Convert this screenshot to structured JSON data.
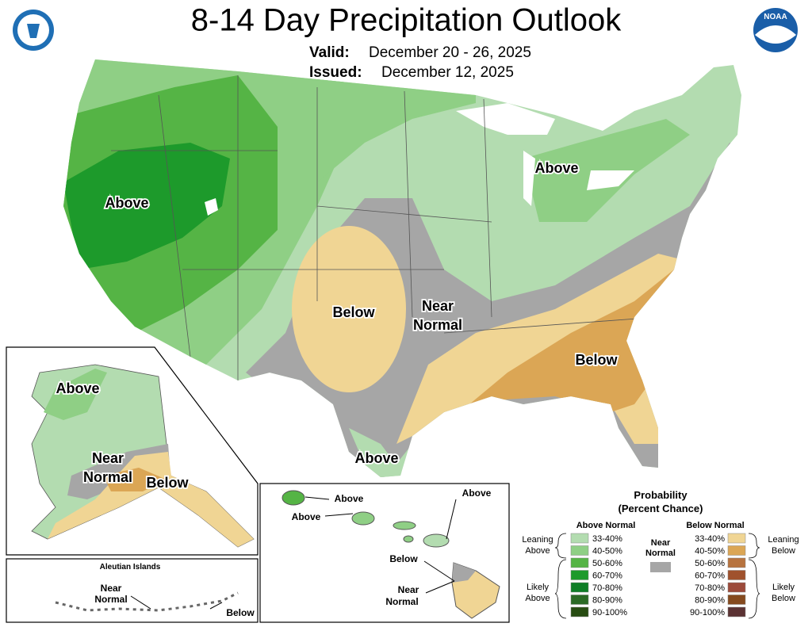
{
  "header": {
    "title": "8-14 Day Precipitation Outlook",
    "valid_label": "Valid:",
    "valid_dates": "December 20 - 26, 2025",
    "issued_label": "Issued:",
    "issued_date": "December 12, 2025",
    "right_logo": "NOAA"
  },
  "conus_labels": [
    "Above",
    "Above",
    "Below",
    "Near",
    "Normal",
    "Below",
    "Above"
  ],
  "alaska_labels": [
    "Above",
    "Near",
    "Normal",
    "Below"
  ],
  "aleutians": {
    "title": "Aleutian Islands",
    "labels": [
      "Near",
      "Normal",
      "Below"
    ]
  },
  "hawaii_labels": [
    "Above",
    "Above",
    "Above",
    "Below",
    "Near",
    "Normal"
  ],
  "legend": {
    "title": [
      "Probability",
      "(Percent Chance)"
    ],
    "above": {
      "header": "Above Normal",
      "bins": [
        "33-40%",
        "40-50%",
        "50-60%",
        "60-70%",
        "70-80%",
        "80-90%",
        "90-100%"
      ],
      "colors": [
        "#b3dcb0",
        "#8fcf85",
        "#55b445",
        "#1d9a2b",
        "#0e7e26",
        "#2b6a25",
        "#274c12"
      ]
    },
    "below": {
      "header": "Below Normal",
      "bins": [
        "33-40%",
        "40-50%",
        "50-60%",
        "60-70%",
        "70-80%",
        "80-90%",
        "90-100%"
      ],
      "colors": [
        "#f0d594",
        "#dba655",
        "#b7733f",
        "#a0522d",
        "#9c4a3a",
        "#854a1e",
        "#5b3233"
      ]
    },
    "near": {
      "label": [
        "Near",
        "Normal"
      ],
      "color": "#a6a6a6"
    },
    "leaning_above": [
      "Leaning",
      "Above"
    ],
    "likely_above": [
      "Likely",
      "Above"
    ],
    "leaning_below": [
      "Leaning",
      "Below"
    ],
    "likely_below": [
      "Likely",
      "Below"
    ]
  }
}
